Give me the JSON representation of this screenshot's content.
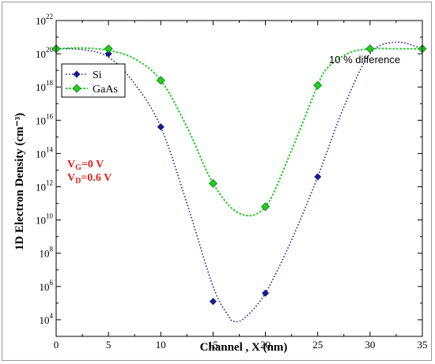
{
  "chart_data": {
    "type": "scatter",
    "xlabel": "Channel , X (nm)",
    "ylabel": "1D Electron Density (cm⁻³)",
    "xlim": [
      0,
      35
    ],
    "ylim_log10": [
      3,
      22
    ],
    "yscale": "log",
    "x_ticks": [
      0,
      5,
      10,
      15,
      20,
      25,
      30,
      35
    ],
    "y_tick_exponents": [
      4,
      6,
      8,
      10,
      12,
      14,
      16,
      18,
      20,
      22
    ],
    "y_tick_base": "10",
    "series": [
      {
        "name": "Si",
        "color": "#1a1a8c",
        "marker": "diamond",
        "x": [
          0,
          5,
          10,
          15,
          20,
          25,
          30,
          35
        ],
        "y_log10": [
          20.3,
          20.0,
          15.6,
          5.1,
          5.6,
          12.6,
          20.3,
          20.3
        ],
        "curve_x": [
          0,
          2.5,
          5,
          7.5,
          10,
          12.5,
          15,
          16.5,
          17,
          18,
          20,
          22.5,
          25,
          27.5,
          30,
          32.5,
          35
        ],
        "curve_log10": [
          20.3,
          20.25,
          19.8,
          18.2,
          15.6,
          11.0,
          6.0,
          4.2,
          3.9,
          4.1,
          5.6,
          8.8,
          12.6,
          16.8,
          20.0,
          20.7,
          20.3
        ]
      },
      {
        "name": "GaAs",
        "color": "#22cc22",
        "marker": "diamond",
        "x": [
          0,
          5,
          10,
          15,
          20,
          25,
          30,
          35
        ],
        "y_log10": [
          20.3,
          20.3,
          18.4,
          12.2,
          10.8,
          18.1,
          20.3,
          20.3
        ],
        "curve_x": [
          0,
          2.5,
          5,
          7.5,
          10,
          12.5,
          15,
          17.5,
          20,
          22.5,
          25,
          26,
          28,
          30,
          32.5,
          35
        ],
        "curve_log10": [
          20.3,
          20.35,
          20.2,
          19.7,
          18.4,
          15.6,
          12.2,
          10.4,
          10.8,
          14.2,
          18.1,
          19.2,
          20.05,
          20.3,
          20.3,
          20.3
        ]
      }
    ],
    "legend_position": "upper-left",
    "annotations": {
      "vg_main": "V",
      "vg_sub": "G",
      "vg_rest": "=0 V",
      "vd_main": "V",
      "vd_sub": "D",
      "vd_rest": "=0.6 V",
      "difference": "10 % difference"
    }
  }
}
